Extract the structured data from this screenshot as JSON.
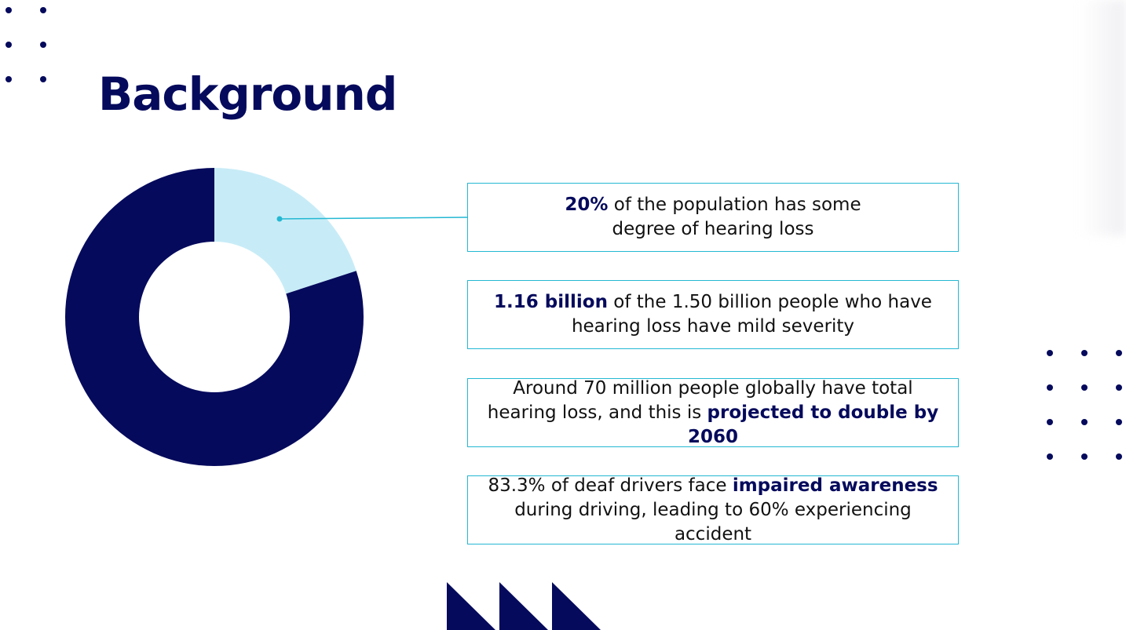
{
  "slide": {
    "title": "Background",
    "accent_color": "#050a5c",
    "border_color": "#24b8d3"
  },
  "chart_data": {
    "type": "pie",
    "categories": [
      "",
      ""
    ],
    "values": [
      20,
      80
    ],
    "colors": [
      "#c8ecf7",
      "#050a5c"
    ],
    "donut": true
  },
  "facts": [
    {
      "highlight": "20%",
      "text": " of the population has some degree of hearing loss"
    },
    {
      "highlight": "1.16 billion",
      "text": " of the 1.50 billion people who have hearing loss have mild severity"
    },
    {
      "text": "Around 70 million people globally have total hearing loss, and this is ",
      "highlight": "projected to double by 2060"
    },
    {
      "text": "83.3% of deaf drivers  face ",
      "highlight": "impaired awareness",
      "text_after": " during driving, leading to 60% experiencing accident"
    }
  ],
  "decorations": {
    "dots_icon": "dot-grid-icon",
    "triangle_icon": "triangle-icon"
  }
}
